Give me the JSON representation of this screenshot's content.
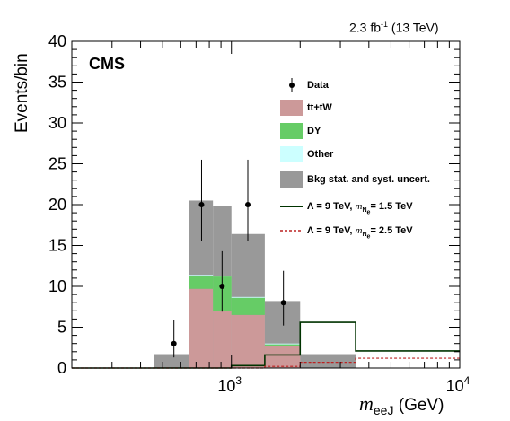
{
  "header": {
    "lumi_prefix": "2.3 fb",
    "lumi_exp": "-1",
    "lumi_suffix": " (13 TeV)",
    "experiment": "CMS"
  },
  "colors": {
    "ttbar": "#cc9999",
    "dy": "#66cc66",
    "other": "#ccffff",
    "uncert": "#999999",
    "signal15": "#003300",
    "signal25": "#bb2222"
  },
  "legend": {
    "data": "Data",
    "ttbar": "tt+tW",
    "dy": "DY",
    "other": "Other",
    "uncert": "Bkg stat. and syst. uncert.",
    "sig15_prefix": "Λ = 9 TeV, ",
    "sig15_m": "m",
    "sig15_sub": "N",
    "sig15_subsub": "e",
    "sig15_suffix": "= 1.5 TeV",
    "sig25_prefix": "Λ = 9 TeV, ",
    "sig25_m": "m",
    "sig25_sub": "N",
    "sig25_subsub": "e",
    "sig25_suffix": "= 2.5 TeV"
  },
  "chart_data": {
    "type": "bar",
    "title": "",
    "ylabel": "Events/bin",
    "xlabel_var": "m",
    "xlabel_sub": "eeJ",
    "xlabel_unit": "(GeV)",
    "xscale": "log",
    "xlim": [
      200,
      10000
    ],
    "ylim": [
      0,
      40
    ],
    "yticks": [
      0,
      5,
      10,
      15,
      20,
      25,
      30,
      35,
      40
    ],
    "xtick_labels": [
      {
        "value": 1000,
        "base": "10",
        "exp": "3"
      },
      {
        "value": 10000,
        "base": "10",
        "exp": "4"
      }
    ],
    "bin_edges": [
      200,
      460,
      650,
      830,
      1000,
      1400,
      2000,
      3500,
      10000
    ],
    "series": [
      {
        "name": "tt+tW",
        "values": [
          0,
          0,
          9.7,
          7.0,
          6.5,
          2.7,
          0,
          0
        ]
      },
      {
        "name": "DY",
        "values": [
          0,
          0,
          1.6,
          4.2,
          2.1,
          0.2,
          0,
          0
        ]
      },
      {
        "name": "Other",
        "values": [
          0,
          0,
          0.1,
          0.1,
          0.1,
          0.1,
          0,
          0
        ]
      }
    ],
    "uncertainty_band": {
      "low": [
        0,
        0,
        0,
        0,
        0,
        0,
        0,
        0
      ],
      "high": [
        0,
        1.7,
        20.5,
        19.8,
        16.4,
        8.2,
        1.7,
        0
      ]
    },
    "signals": [
      {
        "name": "Λ = 9 TeV, m_Ne = 1.5 TeV",
        "style": "solid",
        "values": [
          0,
          0,
          0,
          0,
          0.3,
          1.6,
          5.6,
          2.1
        ]
      },
      {
        "name": "Λ = 9 TeV, m_Ne = 2.5 TeV",
        "style": "dashed",
        "values": [
          0,
          0,
          0,
          0,
          0,
          0.2,
          0.7,
          1.2
        ]
      }
    ],
    "data_points": [
      {
        "x": 560,
        "y": 3,
        "err_low": 1.7,
        "err_high": 2.9
      },
      {
        "x": 740,
        "y": 20,
        "err_low": 4.4,
        "err_high": 5.5
      },
      {
        "x": 910,
        "y": 10,
        "err_low": 3.1,
        "err_high": 4.3
      },
      {
        "x": 1180,
        "y": 20,
        "err_low": 4.4,
        "err_high": 5.5
      },
      {
        "x": 1690,
        "y": 8,
        "err_low": 2.8,
        "err_high": 3.9
      }
    ],
    "legend_position": "top-right"
  }
}
